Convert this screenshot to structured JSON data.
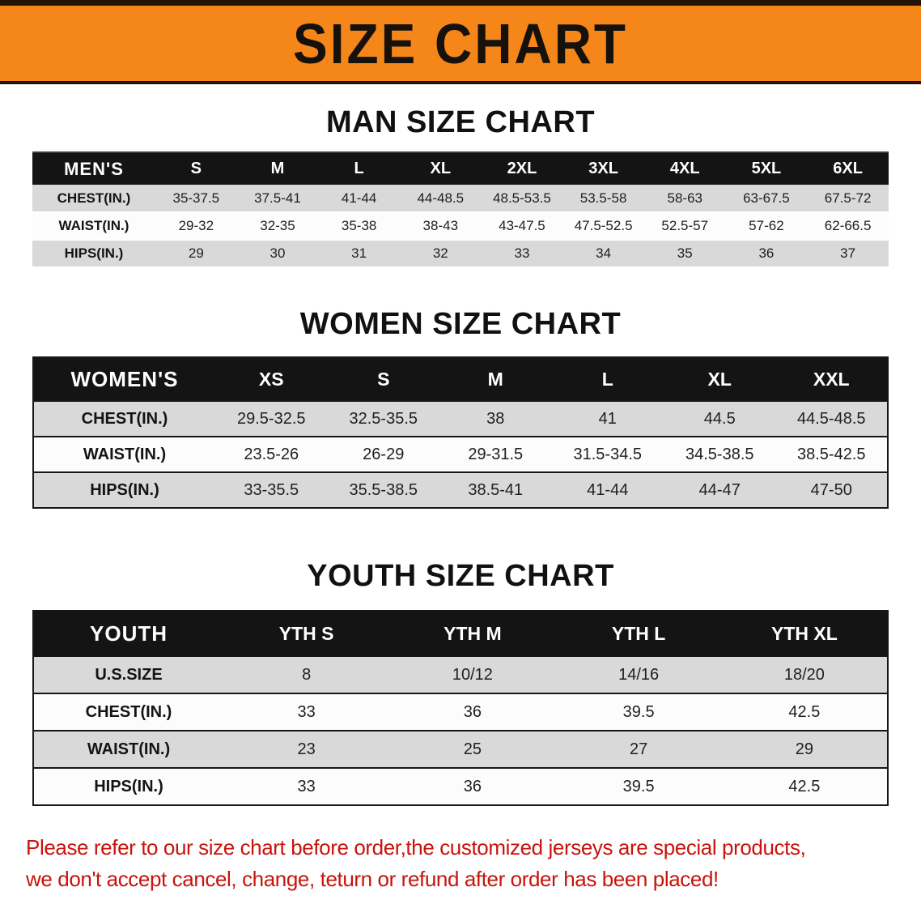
{
  "banner": {
    "title": "SIZE CHART",
    "background_color": "#f5861a",
    "text_color": "#17110c"
  },
  "chart_data": [
    {
      "type": "table",
      "title": "MAN SIZE CHART",
      "columns": [
        "MEN'S",
        "S",
        "M",
        "L",
        "XL",
        "2XL",
        "3XL",
        "4XL",
        "5XL",
        "6XL"
      ],
      "rows": [
        [
          "CHEST(IN.)",
          "35-37.5",
          "37.5-41",
          "41-44",
          "44-48.5",
          "48.5-53.5",
          "53.5-58",
          "58-63",
          "63-67.5",
          "67.5-72"
        ],
        [
          "WAIST(IN.)",
          "29-32",
          "32-35",
          "35-38",
          "38-43",
          "43-47.5",
          "47.5-52.5",
          "52.5-57",
          "57-62",
          "62-66.5"
        ],
        [
          "HIPS(IN.)",
          "29",
          "30",
          "31",
          "32",
          "33",
          "34",
          "35",
          "36",
          "37"
        ]
      ]
    },
    {
      "type": "table",
      "title": "WOMEN SIZE CHART",
      "columns": [
        "WOMEN'S",
        "XS",
        "S",
        "M",
        "L",
        "XL",
        "XXL"
      ],
      "rows": [
        [
          "CHEST(IN.)",
          "29.5-32.5",
          "32.5-35.5",
          "38",
          "41",
          "44.5",
          "44.5-48.5"
        ],
        [
          "WAIST(IN.)",
          "23.5-26",
          "26-29",
          "29-31.5",
          "31.5-34.5",
          "34.5-38.5",
          "38.5-42.5"
        ],
        [
          "HIPS(IN.)",
          "33-35.5",
          "35.5-38.5",
          "38.5-41",
          "41-44",
          "44-47",
          "47-50"
        ]
      ]
    },
    {
      "type": "table",
      "title": "YOUTH SIZE CHART",
      "columns": [
        "YOUTH",
        "YTH S",
        "YTH M",
        "YTH L",
        "YTH XL"
      ],
      "rows": [
        [
          "U.S.SIZE",
          "8",
          "10/12",
          "14/16",
          "18/20"
        ],
        [
          "CHEST(IN.)",
          "33",
          "36",
          "39.5",
          "42.5"
        ],
        [
          "WAIST(IN.)",
          "23",
          "25",
          "27",
          "29"
        ],
        [
          "HIPS(IN.)",
          "33",
          "36",
          "39.5",
          "42.5"
        ]
      ]
    }
  ],
  "disclaimer": {
    "line1": "Please refer to our size chart before order,the customized jerseys are special products,",
    "line2": "we don't accept cancel, change, teturn or refund after order has been placed!",
    "text_color": "#c9130b"
  },
  "colors": {
    "banner_orange": "#f5861a",
    "table_header_black": "#141414",
    "row_gray": "#d9d9d9",
    "row_white": "#fcfcfc"
  }
}
